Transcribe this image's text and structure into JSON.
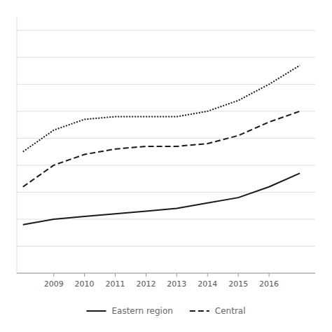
{
  "chart_data": {
    "type": "line",
    "x": [
      2008,
      2009,
      2010,
      2011,
      2012,
      2013,
      2014,
      2015,
      2016,
      2017
    ],
    "series": [
      {
        "name": "Eastern region",
        "color": "#1a1a1a",
        "line_style": "solid",
        "values": [
          0.28,
          0.3,
          0.31,
          0.32,
          0.33,
          0.34,
          0.36,
          0.38,
          0.42,
          0.47
        ]
      },
      {
        "name": "Central",
        "color": "#1a1a1a",
        "line_style": "dashed",
        "values": [
          0.42,
          0.5,
          0.54,
          0.56,
          0.57,
          0.57,
          0.58,
          0.61,
          0.66,
          0.7
        ]
      },
      {
        "color": "#1a1a1a",
        "line_style": "dotted",
        "values": [
          0.55,
          0.63,
          0.67,
          0.68,
          0.68,
          0.68,
          0.7,
          0.74,
          0.8,
          0.87
        ]
      }
    ],
    "xlim": [
      2007.8,
      2017.5
    ],
    "xticks": [
      2009,
      2010,
      2011,
      2012,
      2013,
      2014,
      2015,
      2016
    ],
    "ylim": [
      0.1,
      1.05
    ],
    "yticks": [
      0.1,
      0.2,
      0.3,
      0.4,
      0.5,
      0.6,
      0.7,
      0.8,
      0.9,
      1.0
    ],
    "grid": true,
    "tick_labels": "x",
    "legend": "bottom"
  }
}
